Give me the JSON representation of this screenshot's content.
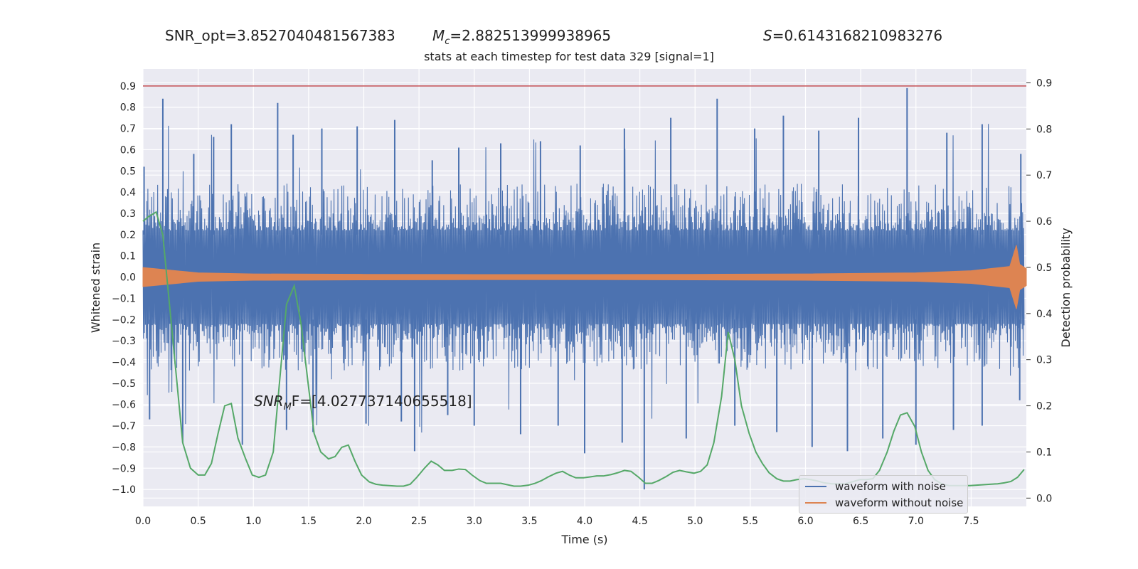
{
  "header": {
    "snr_opt": "SNR_opt=3.8527040481567383",
    "mc_symbol": "M",
    "mc_sub": "c",
    "mc_value": "=2.882513999938965",
    "s_symbol": "S",
    "s_value": "=0.6143168210983276"
  },
  "chart_data": {
    "type": "line",
    "title": "stats at each timestep for test data 329 [signal=1]",
    "xlabel": "Time (s)",
    "ylabel_left": "Whitened strain",
    "ylabel_right": "Detection probability",
    "xlim": [
      0.0,
      8.0
    ],
    "ylim_left": [
      -1.08,
      0.98
    ],
    "ylim_right": [
      -0.018,
      0.93
    ],
    "xticks": [
      "0.0",
      "0.5",
      "1.0",
      "1.5",
      "2.0",
      "2.5",
      "3.0",
      "3.5",
      "4.0",
      "4.5",
      "5.0",
      "5.5",
      "6.0",
      "6.5",
      "7.0",
      "7.5"
    ],
    "yticks_left": [
      "0.9",
      "0.8",
      "0.7",
      "0.6",
      "0.5",
      "0.4",
      "0.3",
      "0.2",
      "0.1",
      "0.0",
      "−0.1",
      "−0.2",
      "−0.3",
      "−0.4",
      "−0.5",
      "−0.6",
      "−0.7",
      "−0.8",
      "−0.9",
      "−1.0"
    ],
    "yticks_right": [
      "0.9",
      "0.8",
      "0.7",
      "0.6",
      "0.5",
      "0.4",
      "0.3",
      "0.2",
      "0.1",
      "0.0"
    ],
    "threshold": {
      "value": 0.9,
      "color": "#c44e52"
    },
    "annotation": {
      "prefix": "SNR",
      "sub": "M",
      "suffix": "F=[4.027737140655518]"
    },
    "grid": true,
    "background": "#eaeaf2",
    "series": [
      {
        "name": "waveform with noise",
        "color": "#4c72b0",
        "description": "noisy whitened strain (dense oscillation, approx ±0.25 band with spikes)",
        "peaks": [
          [
            0.01,
            0.52
          ],
          [
            0.18,
            0.84
          ],
          [
            0.46,
            0.58
          ],
          [
            0.64,
            0.66
          ],
          [
            0.8,
            0.72
          ],
          [
            1.22,
            0.82
          ],
          [
            1.36,
            0.67
          ],
          [
            1.62,
            0.7
          ],
          [
            1.94,
            0.71
          ],
          [
            2.28,
            0.74
          ],
          [
            2.62,
            0.55
          ],
          [
            2.86,
            0.61
          ],
          [
            3.24,
            0.63
          ],
          [
            3.6,
            0.64
          ],
          [
            3.96,
            0.62
          ],
          [
            4.36,
            0.7
          ],
          [
            4.78,
            0.75
          ],
          [
            5.2,
            0.84
          ],
          [
            5.54,
            0.7
          ],
          [
            5.8,
            0.76
          ],
          [
            6.12,
            0.69
          ],
          [
            6.48,
            0.75
          ],
          [
            6.92,
            0.89
          ],
          [
            7.28,
            0.68
          ],
          [
            7.6,
            0.72
          ],
          [
            7.95,
            0.58
          ]
        ],
        "troughs": [
          [
            0.06,
            -0.67
          ],
          [
            0.36,
            -0.78
          ],
          [
            0.9,
            -0.79
          ],
          [
            1.3,
            -0.72
          ],
          [
            1.54,
            -0.73
          ],
          [
            2.02,
            -0.69
          ],
          [
            2.34,
            -0.68
          ],
          [
            2.46,
            -0.82
          ],
          [
            2.76,
            -0.65
          ],
          [
            3.0,
            -0.7
          ],
          [
            3.42,
            -0.74
          ],
          [
            3.76,
            -0.7
          ],
          [
            4.0,
            -0.83
          ],
          [
            4.34,
            -0.78
          ],
          [
            4.54,
            -1.0
          ],
          [
            4.92,
            -0.76
          ],
          [
            5.36,
            -0.7
          ],
          [
            5.74,
            -0.73
          ],
          [
            6.06,
            -0.8
          ],
          [
            6.38,
            -0.82
          ],
          [
            6.7,
            -0.76
          ],
          [
            7.0,
            -0.79
          ],
          [
            7.34,
            -0.72
          ],
          [
            7.6,
            -0.7
          ],
          [
            7.94,
            -0.58
          ]
        ]
      },
      {
        "name": "waveform without noise",
        "color": "#dd8452",
        "description": "clean signal envelope, approx ±0.05 at start, narrowing, chirp at ~7.93 s",
        "envelope": [
          [
            0.0,
            0.045
          ],
          [
            0.5,
            0.02
          ],
          [
            1.0,
            0.015
          ],
          [
            2.0,
            0.013
          ],
          [
            3.0,
            0.012
          ],
          [
            4.0,
            0.012
          ],
          [
            5.0,
            0.013
          ],
          [
            6.0,
            0.015
          ],
          [
            7.0,
            0.02
          ],
          [
            7.5,
            0.03
          ],
          [
            7.85,
            0.05
          ],
          [
            7.91,
            0.15
          ],
          [
            7.94,
            0.06
          ],
          [
            8.0,
            0.04
          ]
        ]
      },
      {
        "name": "detection probability",
        "color": "#55a868",
        "axis": "right",
        "x": [
          0.0,
          0.05,
          0.12,
          0.18,
          0.24,
          0.3,
          0.36,
          0.43,
          0.5,
          0.56,
          0.62,
          0.68,
          0.74,
          0.8,
          0.86,
          0.93,
          0.99,
          1.05,
          1.11,
          1.18,
          1.24,
          1.3,
          1.37,
          1.43,
          1.49,
          1.55,
          1.61,
          1.68,
          1.74,
          1.8,
          1.86,
          1.92,
          1.98,
          2.05,
          2.11,
          2.17,
          2.23,
          2.3,
          2.36,
          2.42,
          2.48,
          2.55,
          2.61,
          2.67,
          2.73,
          2.8,
          2.86,
          2.92,
          2.98,
          3.05,
          3.11,
          3.17,
          3.24,
          3.3,
          3.36,
          3.42,
          3.49,
          3.55,
          3.61,
          3.67,
          3.74,
          3.8,
          3.86,
          3.92,
          3.99,
          4.05,
          4.11,
          4.17,
          4.24,
          4.3,
          4.36,
          4.42,
          4.49,
          4.55,
          4.61,
          4.67,
          4.74,
          4.8,
          4.86,
          4.92,
          4.99,
          5.05,
          5.11,
          5.17,
          5.24,
          5.3,
          5.36,
          5.42,
          5.49,
          5.55,
          5.61,
          5.67,
          5.74,
          5.8,
          5.86,
          5.92,
          5.99,
          6.05,
          6.11,
          6.17,
          6.24,
          6.3,
          6.36,
          6.42,
          6.49,
          6.55,
          6.61,
          6.67,
          6.74,
          6.8,
          6.86,
          6.92,
          6.99,
          7.05,
          7.11,
          7.17,
          7.24,
          7.3,
          7.36,
          7.42,
          7.49,
          7.55,
          7.61,
          7.67,
          7.74,
          7.8,
          7.86,
          7.92,
          7.98
        ],
        "y": [
          0.6,
          0.61,
          0.62,
          0.57,
          0.42,
          0.27,
          0.12,
          0.065,
          0.05,
          0.05,
          0.075,
          0.14,
          0.2,
          0.205,
          0.13,
          0.085,
          0.05,
          0.045,
          0.05,
          0.1,
          0.26,
          0.42,
          0.46,
          0.38,
          0.26,
          0.14,
          0.1,
          0.085,
          0.09,
          0.11,
          0.115,
          0.08,
          0.05,
          0.035,
          0.03,
          0.028,
          0.027,
          0.026,
          0.026,
          0.03,
          0.045,
          0.065,
          0.08,
          0.072,
          0.06,
          0.06,
          0.063,
          0.062,
          0.05,
          0.038,
          0.032,
          0.032,
          0.032,
          0.029,
          0.026,
          0.026,
          0.028,
          0.032,
          0.038,
          0.046,
          0.054,
          0.058,
          0.05,
          0.044,
          0.044,
          0.046,
          0.048,
          0.048,
          0.051,
          0.055,
          0.06,
          0.058,
          0.045,
          0.032,
          0.032,
          0.038,
          0.047,
          0.056,
          0.06,
          0.057,
          0.054,
          0.058,
          0.072,
          0.12,
          0.22,
          0.36,
          0.3,
          0.2,
          0.14,
          0.1,
          0.075,
          0.055,
          0.042,
          0.037,
          0.037,
          0.04,
          0.042,
          0.04,
          0.037,
          0.033,
          0.031,
          0.031,
          0.031,
          0.035,
          0.04,
          0.04,
          0.042,
          0.06,
          0.1,
          0.145,
          0.18,
          0.185,
          0.155,
          0.1,
          0.06,
          0.04,
          0.03,
          0.027,
          0.027,
          0.027,
          0.027,
          0.028,
          0.029,
          0.03,
          0.031,
          0.033,
          0.036,
          0.045,
          0.062
        ]
      }
    ],
    "legend": {
      "location": "lower right",
      "entries": [
        "waveform with noise",
        "waveform without noise"
      ]
    }
  }
}
